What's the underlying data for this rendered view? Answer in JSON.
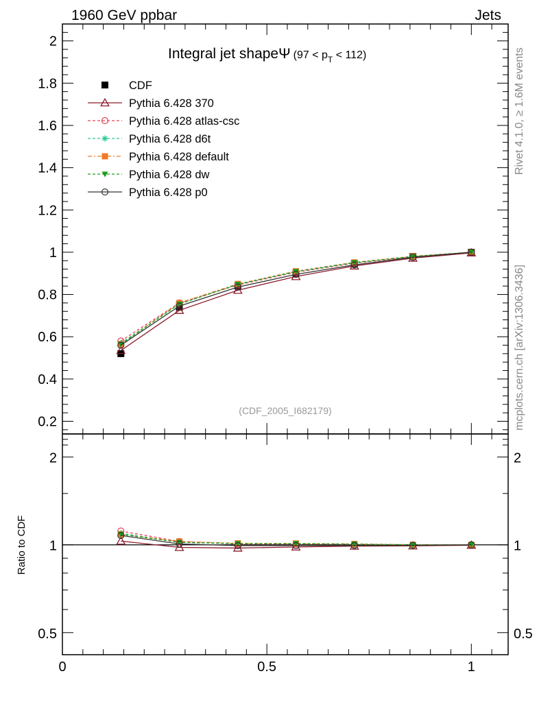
{
  "header": {
    "left": "1960 GeV ppbar",
    "right": "Jets"
  },
  "side_labels": {
    "rivet": "Rivet 4.1.0, ≥ 1.6M events",
    "mcplots": "mcplots.cern.ch [arXiv:1306.3436]"
  },
  "chart_data": [
    {
      "type": "line",
      "panel": "main",
      "title": "Integral jet shapeΨ",
      "title_suffix": "(97 < p",
      "title_sub": "T",
      "title_suffix_end": " < 112)",
      "watermark": "(CDF_2005_I682179)",
      "xlim": [
        0,
        1.09
      ],
      "ylim": [
        0.14,
        2.08
      ],
      "yticks": [
        0.2,
        0.4,
        0.6,
        0.8,
        1,
        1.2,
        1.4,
        1.6,
        1.8,
        2
      ],
      "ytick_labels": [
        "0.2",
        "0.4",
        "0.6",
        "0.8",
        "1",
        "1.2",
        "1.4",
        "1.6",
        "1.8",
        "2"
      ],
      "x": [
        0.143,
        0.286,
        0.429,
        0.571,
        0.714,
        0.857,
        1.0
      ],
      "series": [
        {
          "name": "CDF",
          "color": "#000000",
          "marker": "square",
          "dash": "none",
          "values": [
            0.52,
            0.74,
            0.84,
            0.9,
            0.945,
            0.98,
            1.0
          ]
        },
        {
          "name": "Pythia 6.428 370",
          "color": "#8b1a2b",
          "marker": "triangle-open",
          "dash": "solid",
          "values": [
            0.535,
            0.725,
            0.82,
            0.885,
            0.935,
            0.972,
            0.997
          ]
        },
        {
          "name": "Pythia 6.428 atlas-csc",
          "color": "#e8405a",
          "marker": "circle-open",
          "dash": "4,3",
          "values": [
            0.58,
            0.76,
            0.845,
            0.905,
            0.948,
            0.978,
            1.0
          ]
        },
        {
          "name": "Pythia 6.428 d6t",
          "color": "#22c98f",
          "marker": "star",
          "dash": "4,3",
          "values": [
            0.57,
            0.755,
            0.848,
            0.908,
            0.95,
            0.98,
            1.0
          ]
        },
        {
          "name": "Pythia 6.428 default",
          "color": "#f07a28",
          "marker": "square",
          "dash": "6,3,2,3",
          "values": [
            0.565,
            0.76,
            0.85,
            0.91,
            0.952,
            0.981,
            1.0
          ]
        },
        {
          "name": "Pythia 6.428 dw",
          "color": "#1a9e1a",
          "marker": "triangle-down",
          "dash": "4,3",
          "values": [
            0.565,
            0.755,
            0.848,
            0.909,
            0.951,
            0.98,
            1.0
          ]
        },
        {
          "name": "Pythia 6.428 p0",
          "color": "#333333",
          "marker": "circle-open",
          "dash": "solid",
          "values": [
            0.56,
            0.745,
            0.835,
            0.895,
            0.94,
            0.976,
            1.0
          ]
        }
      ]
    },
    {
      "type": "line",
      "panel": "ratio",
      "ylabel": "Ratio to CDF",
      "scale": "log",
      "xlim": [
        0,
        1.09
      ],
      "ylim": [
        0.42,
        2.4
      ],
      "yticks": [
        0.5,
        1,
        2
      ],
      "ytick_labels": [
        "0.5",
        "1",
        "2"
      ],
      "xticks": [
        0,
        0.5,
        1
      ],
      "xtick_labels": [
        "0",
        "0.5",
        "1"
      ],
      "x": [
        0.143,
        0.286,
        0.429,
        0.571,
        0.714,
        0.857,
        1.0
      ],
      "series": [
        {
          "name": "Pythia 6.428 370",
          "values": [
            1.03,
            0.98,
            0.975,
            0.983,
            0.99,
            0.992,
            0.997
          ]
        },
        {
          "name": "Pythia 6.428 atlas-csc",
          "values": [
            1.115,
            1.027,
            1.006,
            1.006,
            1.003,
            0.998,
            1.0
          ]
        },
        {
          "name": "Pythia 6.428 d6t",
          "values": [
            1.096,
            1.02,
            1.01,
            1.009,
            1.005,
            1.0,
            1.0
          ]
        },
        {
          "name": "Pythia 6.428 default",
          "values": [
            1.087,
            1.027,
            1.012,
            1.011,
            1.007,
            1.001,
            1.0
          ]
        },
        {
          "name": "Pythia 6.428 dw",
          "values": [
            1.087,
            1.02,
            1.01,
            1.01,
            1.006,
            1.0,
            1.0
          ]
        },
        {
          "name": "Pythia 6.428 p0",
          "values": [
            1.077,
            1.007,
            0.994,
            0.994,
            0.995,
            0.996,
            1.0
          ]
        }
      ]
    }
  ]
}
